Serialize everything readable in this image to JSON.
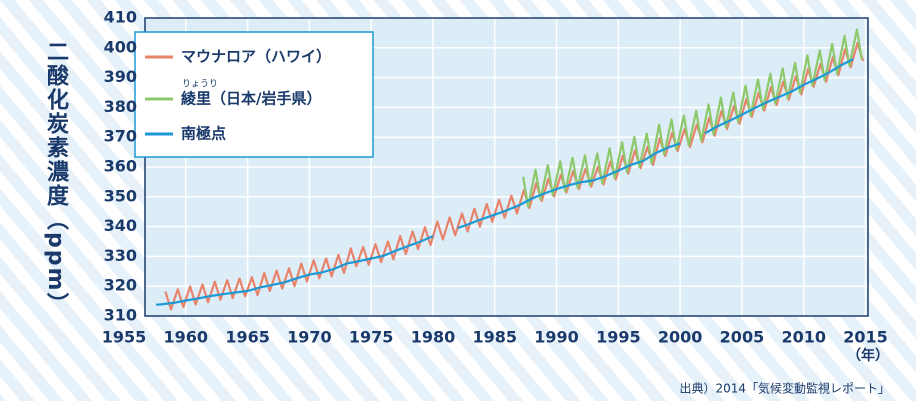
{
  "chart_data": {
    "type": "line",
    "y_label": "二酸化炭素濃度（ppm）",
    "x_unit": "（年）",
    "source": "出典）2014「気候変動監視レポート」",
    "ruby": "りょうり",
    "xlim": [
      1956.7,
      2015.2
    ],
    "ylim": [
      310,
      410
    ],
    "xticks": [
      1955,
      1960,
      1965,
      1970,
      1975,
      1980,
      1985,
      1990,
      1995,
      2000,
      2005,
      2010,
      2015
    ],
    "yticks": [
      310,
      320,
      330,
      340,
      350,
      360,
      370,
      380,
      390,
      400,
      410
    ],
    "grid": true,
    "legend": "upper left",
    "series": [
      {
        "name": "マウナロア（ハワイ）",
        "color": "#e8836b",
        "x": [
          1958.35,
          1958.8,
          1959.35,
          1959.8,
          1960.35,
          1960.8,
          1961.35,
          1961.8,
          1962.35,
          1962.8,
          1963.35,
          1963.8,
          1964.35,
          1964.8,
          1965.35,
          1965.8,
          1966.35,
          1966.8,
          1967.35,
          1967.8,
          1968.35,
          1968.8,
          1969.35,
          1969.8,
          1970.35,
          1970.8,
          1971.35,
          1971.8,
          1972.35,
          1972.8,
          1973.35,
          1973.8,
          1974.35,
          1974.8,
          1975.35,
          1975.8,
          1976.35,
          1976.8,
          1977.35,
          1977.8,
          1978.35,
          1978.8,
          1979.35,
          1979.8,
          1980.35,
          1980.8,
          1981.35,
          1981.8,
          1982.35,
          1982.8,
          1983.35,
          1983.8,
          1984.35,
          1984.8,
          1985.35,
          1985.8,
          1986.35,
          1986.8,
          1987.35,
          1987.8,
          1988.35,
          1988.8,
          1989.35,
          1989.8,
          1990.35,
          1990.8,
          1991.35,
          1991.8,
          1992.35,
          1992.8,
          1993.35,
          1993.8,
          1994.35,
          1994.8,
          1995.35,
          1995.8,
          1996.35,
          1996.8,
          1997.35,
          1997.8,
          1998.35,
          1998.8,
          1999.35,
          1999.8,
          2000.35,
          2000.8,
          2001.35,
          2001.8,
          2002.35,
          2002.8,
          2003.35,
          2003.8,
          2004.35,
          2004.8,
          2005.35,
          2005.8,
          2006.35,
          2006.8,
          2007.35,
          2007.8,
          2008.35,
          2008.8,
          2009.35,
          2009.8,
          2010.35,
          2010.8,
          2011.35,
          2011.8,
          2012.35,
          2012.8,
          2013.35,
          2013.8,
          2014.35,
          2014.8
        ],
        "values": [
          318.2,
          312.2,
          319.0,
          313.0,
          319.9,
          313.9,
          320.6,
          314.6,
          321.5,
          315.5,
          322.0,
          316.0,
          322.6,
          316.6,
          323.0,
          317.0,
          324.4,
          318.4,
          325.2,
          319.2,
          326.0,
          320.0,
          327.6,
          321.6,
          328.7,
          322.7,
          329.3,
          323.3,
          330.5,
          324.5,
          332.7,
          326.7,
          333.2,
          327.2,
          334.1,
          328.1,
          335.0,
          329.0,
          336.8,
          330.8,
          338.4,
          332.4,
          339.8,
          333.8,
          341.7,
          335.7,
          343.1,
          337.1,
          344.4,
          338.4,
          346.0,
          340.0,
          347.6,
          341.6,
          349.0,
          343.0,
          350.4,
          344.4,
          352.2,
          346.2,
          354.6,
          348.6,
          356.1,
          350.1,
          357.4,
          351.4,
          358.6,
          352.6,
          359.4,
          353.4,
          360.1,
          354.1,
          361.8,
          355.8,
          363.8,
          357.8,
          365.6,
          359.6,
          366.7,
          360.7,
          369.7,
          363.7,
          371.4,
          365.4,
          372.7,
          366.7,
          374.3,
          368.3,
          376.5,
          370.5,
          378.8,
          372.8,
          380.5,
          374.5,
          382.8,
          376.8,
          384.9,
          378.9,
          386.8,
          380.8,
          388.6,
          382.6,
          390.4,
          384.4,
          392.9,
          386.9,
          394.6,
          388.6,
          396.8,
          390.8,
          399.5,
          393.5,
          401.6,
          395.6
        ]
      },
      {
        "name": "綾里（日本/岩手県）",
        "color": "#8dc86b",
        "x": [
          1987.3,
          1987.7,
          1988.3,
          1988.7,
          1989.3,
          1989.7,
          1990.3,
          1990.7,
          1991.3,
          1991.7,
          1992.3,
          1992.7,
          1993.3,
          1993.7,
          1994.3,
          1994.7,
          1995.3,
          1995.7,
          1996.3,
          1996.7,
          1997.3,
          1997.7,
          1998.3,
          1998.7,
          1999.3,
          1999.7,
          2000.3,
          2000.7,
          2001.3,
          2001.7,
          2002.3,
          2002.7,
          2003.3,
          2003.7,
          2004.3,
          2004.7,
          2005.3,
          2005.7,
          2006.3,
          2006.7,
          2007.3,
          2007.7,
          2008.3,
          2008.7,
          2009.3,
          2009.7,
          2010.3,
          2010.7,
          2011.3,
          2011.7,
          2012.3,
          2012.7,
          2013.3,
          2013.7,
          2014.3,
          2014.7
        ],
        "values": [
          356.7,
          346.7,
          359.1,
          349.1,
          360.6,
          350.6,
          361.9,
          351.9,
          363.1,
          353.1,
          363.9,
          353.9,
          364.6,
          354.6,
          366.3,
          356.3,
          368.3,
          358.3,
          370.1,
          360.1,
          371.2,
          361.2,
          374.2,
          364.2,
          375.9,
          365.9,
          377.2,
          367.2,
          378.8,
          368.8,
          381.0,
          371.0,
          383.3,
          373.3,
          385.0,
          375.0,
          387.3,
          377.3,
          389.4,
          379.4,
          391.3,
          381.3,
          393.1,
          383.1,
          394.9,
          384.9,
          397.4,
          387.4,
          399.1,
          389.1,
          401.3,
          391.3,
          404.0,
          394.0,
          406.1,
          396.1
        ]
      },
      {
        "name": "南極点",
        "color": "#1b9ad6",
        "x": [
          1957.6,
          1958,
          1959,
          1960,
          1961,
          1962,
          1963,
          1964,
          1965,
          1966,
          1967,
          1968,
          1969,
          1970,
          1971,
          1972,
          1973,
          1974,
          1975,
          1976,
          1977,
          1978,
          1979,
          1980,
          1981,
          1982,
          1983,
          1984,
          1985,
          1986,
          1987,
          1988,
          1989,
          1990,
          1991,
          1992,
          1993,
          1994,
          1995,
          1996,
          1997,
          1998,
          1999,
          2000,
          2001,
          2002,
          2003,
          2004,
          2005,
          2006,
          2007,
          2008,
          2009,
          2010,
          2011,
          2012,
          2013,
          2014
        ],
        "values": [
          313.8,
          313.9,
          314.4,
          315.2,
          315.9,
          316.7,
          317.3,
          317.9,
          318.4,
          319.6,
          320.4,
          321.3,
          322.7,
          323.9,
          324.6,
          325.8,
          327.6,
          328.4,
          329.3,
          330.2,
          331.9,
          333.5,
          335.0,
          336.8,
          null,
          339.5,
          341.0,
          342.6,
          344.0,
          345.5,
          347.2,
          349.4,
          351.1,
          352.6,
          353.9,
          354.9,
          355.5,
          357.0,
          358.8,
          360.7,
          362.0,
          364.6,
          366.5,
          367.9,
          null,
          371.3,
          373.6,
          375.5,
          377.6,
          379.7,
          381.7,
          383.5,
          385.3,
          387.6,
          389.5,
          391.6,
          394.1,
          396.2
        ]
      }
    ]
  }
}
